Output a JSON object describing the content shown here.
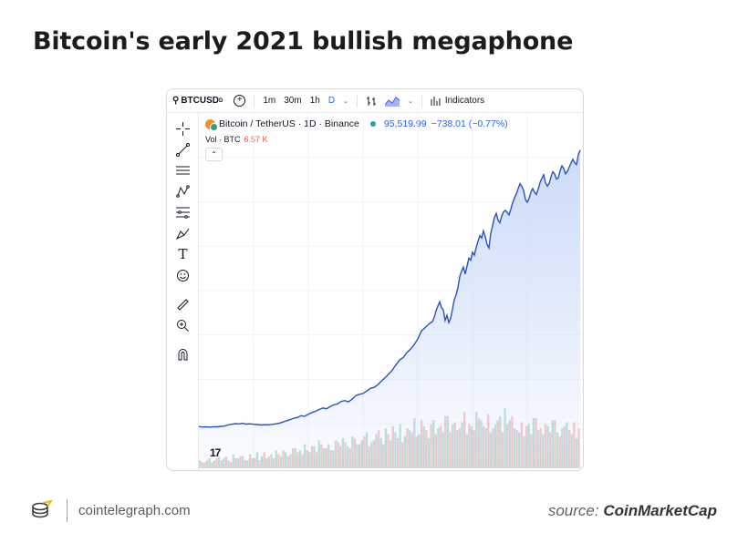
{
  "headline": "Bitcoin's early 2021 bullish megaphone",
  "toolbar": {
    "symbol": "BTCUSD",
    "timeframes": [
      "1m",
      "30m",
      "1h",
      "D"
    ],
    "active_timeframe": "D",
    "indicators_label": "Indicators"
  },
  "legend": {
    "title": "Bitcoin / TetherUS · 1D · Binance",
    "price": "95,519.99",
    "change": "−738.01 (−0.77%)",
    "volume_label": "Vol · BTC",
    "volume_value": "6.57 K"
  },
  "colors": {
    "line": "#2a52be",
    "area_top": "#c9d9f7",
    "vol_up": "#26a69a",
    "vol_down": "#ef5350",
    "price": "#2962ff"
  },
  "chart_data": {
    "type": "area",
    "title": "Bitcoin / TetherUS · 1D · Binance",
    "xlabel": "",
    "ylabel": "",
    "grid": true,
    "x": [
      0,
      4,
      8,
      12,
      16,
      20,
      24,
      28,
      32,
      36,
      40,
      44,
      48,
      52,
      56,
      60,
      64,
      68,
      72,
      76,
      80,
      84,
      88,
      92,
      96,
      100,
      104,
      108,
      112,
      116,
      120,
      124,
      128,
      132,
      136,
      140,
      144,
      148,
      152,
      156,
      160,
      164,
      168,
      172,
      176,
      180,
      184,
      188,
      192,
      196,
      200,
      204,
      208,
      212,
      216,
      220,
      224,
      228,
      232,
      236,
      240,
      244,
      248,
      252,
      256,
      258,
      260,
      262,
      264,
      266,
      268,
      270,
      272,
      274,
      276,
      278,
      280,
      282,
      284,
      286,
      288,
      290,
      292,
      294,
      296,
      298,
      300,
      302,
      304,
      306,
      308,
      310,
      312,
      314,
      316,
      318,
      320,
      322,
      324,
      326,
      328,
      330,
      332,
      334,
      336,
      338,
      340,
      342,
      344,
      346,
      348,
      350,
      352,
      354,
      356,
      358,
      360,
      362,
      364,
      366,
      368,
      370,
      372,
      374,
      376,
      378,
      380,
      382,
      384,
      386,
      388,
      390,
      392,
      394,
      396,
      398,
      400,
      402,
      404,
      406,
      408,
      410,
      412,
      414,
      416,
      418
    ],
    "values": [
      10.5,
      10.2,
      10.3,
      10.1,
      10.4,
      10.3,
      10.6,
      10.8,
      11.5,
      12.0,
      12.4,
      12.2,
      12.6,
      12.1,
      12.3,
      12.0,
      11.8,
      11.5,
      11.7,
      11.6,
      11.9,
      12.2,
      12.6,
      13.4,
      14.2,
      15.0,
      15.8,
      16.4,
      17.5,
      17.2,
      18.4,
      19.6,
      20.4,
      21.6,
      22.5,
      22.0,
      23.4,
      24.6,
      25.2,
      26.8,
      27.3,
      26.5,
      28.2,
      30.5,
      31.4,
      31.9,
      33.5,
      35.2,
      35.9,
      37.5,
      39.8,
      42.0,
      44.5,
      47.0,
      50.5,
      53.6,
      55.2,
      58.4,
      60.6,
      63.5,
      67.2,
      72.4,
      74.6,
      76.8,
      78.5,
      81.2,
      85.4,
      88.5,
      91.2,
      87.6,
      86.0,
      79.2,
      82.5,
      77.8,
      80.6,
      86.4,
      92.6,
      95.8,
      100.5,
      107.6,
      111.2,
      113.8,
      109.2,
      114.5,
      119.6,
      118.2,
      123.4,
      121.5,
      126.4,
      130.5,
      134.2,
      132.6,
      137.2,
      133.5,
      128.4,
      126.2,
      135.6,
      140.5,
      145.8,
      148.6,
      144.2,
      142.5,
      146.8,
      149.6,
      150.5,
      149.2,
      147.6,
      151.2,
      155.4,
      158.6,
      161.2,
      164.5,
      167.8,
      166.2,
      163.5,
      157.6,
      155.8,
      158.2,
      162.4,
      164.6,
      162.2,
      160.8,
      164.2,
      168.5,
      171.2,
      173.6,
      168.4,
      166.2,
      167.8,
      172.2,
      175.6,
      174.2,
      170.8,
      171.5,
      176.2,
      179.4,
      177.6,
      174.2,
      175.8,
      178.5,
      181.2,
      183.6,
      181.4,
      180.2,
      186.5,
      189.5
    ],
    "volume_up": [
      4,
      3,
      5,
      4,
      6,
      5,
      4,
      7,
      5,
      6,
      4,
      5,
      8,
      6,
      5,
      7,
      9,
      6,
      8,
      7,
      10,
      9,
      12,
      8,
      11,
      14,
      10,
      12,
      9,
      13,
      15,
      11,
      16,
      12,
      14,
      18,
      13,
      17,
      15,
      20,
      14,
      18,
      22,
      16,
      19,
      25,
      17,
      21,
      15,
      24,
      20,
      18,
      26,
      22,
      19,
      23,
      17,
      21,
      28,
      24,
      20,
      18,
      22,
      26,
      30,
      24,
      20,
      18,
      16,
      22,
      25,
      19,
      17,
      21,
      24,
      18,
      20,
      23,
      17,
      15
    ],
    "volume_down": [
      3,
      4,
      3,
      5,
      4,
      6,
      3,
      5,
      6,
      4,
      7,
      5,
      4,
      8,
      6,
      5,
      7,
      9,
      6,
      10,
      8,
      7,
      9,
      11,
      8,
      12,
      10,
      9,
      14,
      11,
      13,
      10,
      15,
      12,
      16,
      11,
      14,
      19,
      12,
      17,
      21,
      15,
      13,
      20,
      18,
      16,
      24,
      19,
      22,
      17,
      21,
      26,
      18,
      23,
      20,
      28,
      22,
      19,
      25,
      21,
      27,
      20,
      24,
      18,
      22,
      26,
      19,
      23,
      21,
      17,
      25,
      20,
      22,
      18,
      24,
      16,
      21,
      19,
      23,
      20
    ]
  },
  "footer": {
    "site": "cointelegraph.com",
    "source_prefix": "source:",
    "source_name": "CoinMarketCap"
  },
  "tv_logo": "17"
}
